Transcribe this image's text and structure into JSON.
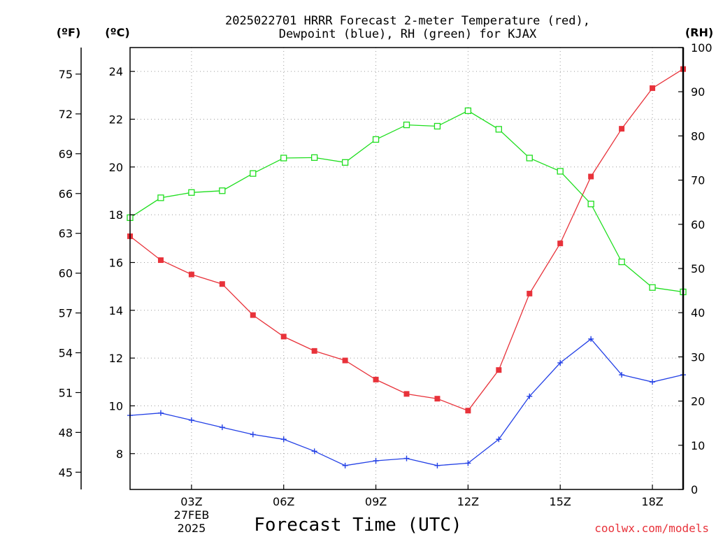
{
  "chart_data": {
    "type": "line",
    "title_line1": "2025022701 HRRR Forecast 2-meter Temperature (red),",
    "title_line2": "Dewpoint (blue), RH (green) for KJAX",
    "xlabel": "Forecast Time (UTC)",
    "credit": "coolwx.com/models",
    "units": {
      "fahrenheit": "(ºF)",
      "celsius": "(ºC)",
      "rh": "(RH)"
    },
    "date_label": [
      "27FEB",
      "2025"
    ],
    "x_ticks": [
      "03Z",
      "06Z",
      "09Z",
      "12Z",
      "15Z",
      "18Z"
    ],
    "x_range": [
      1,
      19
    ],
    "celsius_axis": {
      "range": [
        6.5,
        25
      ],
      "ticks": [
        8,
        10,
        12,
        14,
        16,
        18,
        20,
        22,
        24
      ]
    },
    "fahrenheit_axis": {
      "ticks": [
        45,
        48,
        51,
        54,
        57,
        60,
        63,
        66,
        69,
        72,
        75
      ]
    },
    "rh_axis": {
      "range": [
        0,
        100
      ],
      "ticks": [
        0,
        10,
        20,
        30,
        40,
        50,
        60,
        70,
        80,
        90,
        100
      ]
    },
    "colors": {
      "temperature": "#e8323a",
      "dewpoint": "#2340e6",
      "rh": "#1ede1e",
      "credit": "#e8323a"
    },
    "x": [
      1,
      2,
      3,
      4,
      5,
      6,
      7,
      8,
      9,
      10,
      11,
      12,
      13,
      14,
      15,
      16,
      17,
      18,
      19
    ],
    "series": [
      {
        "key": "temperature",
        "axis": "celsius",
        "marker": "square",
        "values": [
          17.1,
          16.1,
          15.5,
          15.1,
          13.8,
          12.9,
          12.3,
          11.9,
          11.1,
          10.5,
          10.3,
          9.8,
          11.5,
          14.7,
          16.8,
          19.6,
          21.6,
          23.3,
          24.1
        ]
      },
      {
        "key": "dewpoint",
        "axis": "celsius",
        "marker": "plus",
        "values": [
          9.6,
          9.7,
          9.4,
          9.1,
          8.8,
          8.6,
          8.1,
          7.5,
          7.7,
          7.8,
          7.5,
          7.6,
          8.6,
          10.4,
          11.8,
          12.8,
          11.3,
          11.0,
          11.3
        ]
      },
      {
        "key": "rh",
        "axis": "rh",
        "marker": "open-square",
        "values": [
          61.5,
          66,
          67.2,
          67.6,
          71.5,
          75,
          75.1,
          74,
          79.2,
          82.5,
          82.2,
          85.7,
          81.5,
          75,
          72,
          64.6,
          51.5,
          45.7,
          44.7
        ]
      }
    ]
  }
}
